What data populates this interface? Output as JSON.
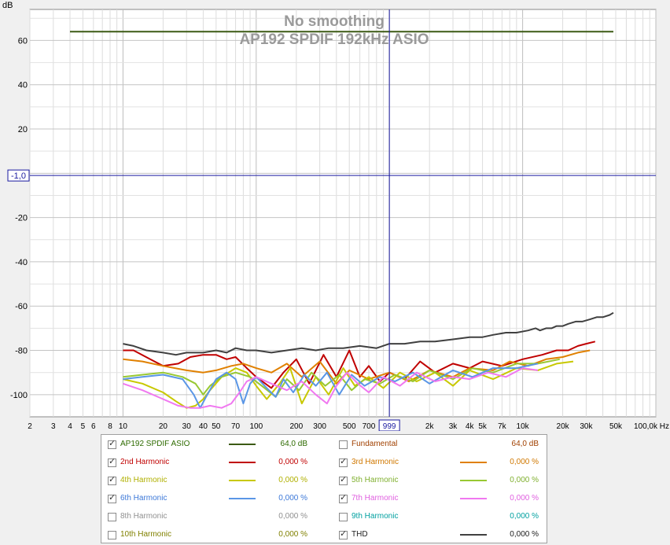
{
  "chart_data": {
    "type": "line",
    "title": "No smoothing",
    "subtitle": "AP192 SPDIF 192kHz ASIO",
    "ylabel": "dB",
    "xlabel": "Hz",
    "x_scale": "log",
    "xlim": [
      2,
      100000
    ],
    "ylim": [
      -110,
      74
    ],
    "grid": true,
    "y_ticks": [
      "60",
      "40",
      "20",
      "-20",
      "-40",
      "-60",
      "-80",
      "-100"
    ],
    "y_tick_values": [
      60,
      40,
      20,
      -20,
      -40,
      -60,
      -80,
      -100
    ],
    "x_ticks": [
      {
        "v": 2,
        "label": "2"
      },
      {
        "v": 3,
        "label": "3"
      },
      {
        "v": 4,
        "label": "4"
      },
      {
        "v": 5,
        "label": "5"
      },
      {
        "v": 6,
        "label": "6"
      },
      {
        "v": 8,
        "label": "8"
      },
      {
        "v": 10,
        "label": "10"
      },
      {
        "v": 20,
        "label": "20"
      },
      {
        "v": 30,
        "label": "30"
      },
      {
        "v": 40,
        "label": "40"
      },
      {
        "v": 50,
        "label": "50"
      },
      {
        "v": 70,
        "label": "70"
      },
      {
        "v": 100,
        "label": "100"
      },
      {
        "v": 200,
        "label": "200"
      },
      {
        "v": 300,
        "label": "300"
      },
      {
        "v": 500,
        "label": "500"
      },
      {
        "v": 700,
        "label": "700"
      },
      {
        "v": 2000,
        "label": "2k"
      },
      {
        "v": 3000,
        "label": "3k"
      },
      {
        "v": 4000,
        "label": "4k"
      },
      {
        "v": 5000,
        "label": "5k"
      },
      {
        "v": 7000,
        "label": "7k"
      },
      {
        "v": 10000,
        "label": "10k"
      },
      {
        "v": 20000,
        "label": "20k"
      },
      {
        "v": 30000,
        "label": "30k"
      },
      {
        "v": 50000,
        "label": "50k"
      },
      {
        "v": 100000,
        "label": "100,0k Hz"
      }
    ],
    "cursor": {
      "x": 999,
      "x_label": "999",
      "y": -1.0,
      "y_label": "-1,0"
    },
    "series": [
      {
        "name": "AP192 SPDIF ASIO",
        "color": "#3c5a14",
        "x": [
          4,
          48000
        ],
        "y": [
          64,
          64
        ]
      },
      {
        "name": "2nd Harmonic",
        "color": "#c00000",
        "x": [
          10,
          12,
          16,
          20,
          26,
          32,
          40,
          50,
          60,
          70,
          85,
          100,
          130,
          160,
          200,
          250,
          320,
          400,
          500,
          600,
          700,
          850,
          1000,
          1300,
          1700,
          2200,
          3000,
          4000,
          5000,
          7000,
          10000,
          14000,
          18000,
          22000,
          26000,
          30000,
          35000
        ],
        "y": [
          -80,
          -80,
          -84,
          -87,
          -86,
          -83,
          -82,
          -82,
          -84,
          -83,
          -88,
          -92,
          -97,
          -90,
          -84,
          -95,
          -82,
          -92,
          -80,
          -92,
          -87,
          -94,
          -90,
          -93,
          -85,
          -90,
          -86,
          -88,
          -85,
          -87,
          -84,
          -82,
          -80,
          -80,
          -78,
          -77,
          -76
        ]
      },
      {
        "name": "3rd Harmonic",
        "color": "#e08000",
        "x": [
          10,
          14,
          20,
          30,
          40,
          50,
          65,
          80,
          100,
          130,
          170,
          220,
          300,
          400,
          500,
          700,
          1000,
          1400,
          2000,
          3000,
          4000,
          6000,
          8000,
          11000,
          15000,
          20000,
          26000,
          32000
        ],
        "y": [
          -84,
          -85,
          -87,
          -89,
          -90,
          -89,
          -87,
          -86,
          -88,
          -90,
          -86,
          -92,
          -85,
          -95,
          -89,
          -93,
          -90,
          -94,
          -89,
          -92,
          -88,
          -89,
          -85,
          -87,
          -84,
          -83,
          -81,
          -80
        ]
      },
      {
        "name": "4th Harmonic",
        "color": "#c8c800",
        "x": [
          10,
          14,
          20,
          25,
          30,
          35,
          40,
          45,
          55,
          70,
          85,
          100,
          120,
          150,
          180,
          220,
          280,
          350,
          450,
          550,
          700,
          900,
          1200,
          1600,
          2200,
          3000,
          4000,
          6000,
          9000,
          13000,
          18000,
          24000
        ],
        "y": [
          -93,
          -95,
          -99,
          -103,
          -106,
          -105,
          -102,
          -98,
          -92,
          -88,
          -90,
          -96,
          -102,
          -95,
          -88,
          -104,
          -92,
          -100,
          -88,
          -96,
          -92,
          -97,
          -90,
          -94,
          -90,
          -96,
          -89,
          -93,
          -88,
          -89,
          -86,
          -85
        ]
      },
      {
        "name": "5th Harmonic",
        "color": "#98c832",
        "x": [
          10,
          14,
          20,
          28,
          35,
          40,
          45,
          55,
          70,
          90,
          110,
          140,
          170,
          210,
          260,
          330,
          420,
          520,
          650,
          850,
          1100,
          1500,
          2000,
          3000,
          4200,
          6000,
          9000,
          13000,
          19000
        ],
        "y": [
          -92,
          -91,
          -90,
          -92,
          -95,
          -100,
          -96,
          -92,
          -90,
          -92,
          -96,
          -101,
          -93,
          -98,
          -90,
          -96,
          -91,
          -98,
          -93,
          -95,
          -91,
          -94,
          -89,
          -93,
          -88,
          -90,
          -86,
          -86,
          -84
        ]
      },
      {
        "name": "6th Harmonic",
        "color": "#5a96e6",
        "x": [
          10,
          14,
          20,
          28,
          34,
          38,
          42,
          50,
          60,
          70,
          80,
          90,
          100,
          120,
          140,
          160,
          190,
          230,
          280,
          340,
          420,
          520,
          650,
          850,
          1100,
          1500,
          2000,
          3000,
          4200,
          6000,
          9000,
          13000
        ],
        "y": [
          -93,
          -92,
          -91,
          -93,
          -100,
          -106,
          -101,
          -93,
          -90,
          -93,
          -104,
          -95,
          -92,
          -97,
          -101,
          -93,
          -99,
          -91,
          -96,
          -90,
          -100,
          -91,
          -96,
          -92,
          -94,
          -90,
          -95,
          -89,
          -92,
          -88,
          -88,
          -86
        ]
      },
      {
        "name": "7th Harmonic",
        "color": "#f078f0",
        "x": [
          10,
          14,
          20,
          26,
          32,
          38,
          45,
          55,
          65,
          75,
          85,
          100,
          130,
          170,
          220,
          280,
          340,
          400,
          480,
          580,
          700,
          900,
          1200,
          1600,
          2200,
          3000,
          4000,
          5500,
          7500,
          10000,
          13000
        ],
        "y": [
          -95,
          -98,
          -102,
          -105,
          -106,
          -106,
          -105,
          -106,
          -104,
          -99,
          -94,
          -92,
          -95,
          -98,
          -94,
          -100,
          -104,
          -96,
          -90,
          -95,
          -99,
          -92,
          -96,
          -90,
          -94,
          -92,
          -93,
          -90,
          -92,
          -88,
          -89
        ]
      },
      {
        "name": "8th Harmonic",
        "color": "#a0a0a0",
        "x": [],
        "y": []
      },
      {
        "name": "9th Harmonic",
        "color": "#00b4b4",
        "x": [],
        "y": []
      },
      {
        "name": "10th Harmonic",
        "color": "#8c8c00",
        "x": [],
        "y": []
      },
      {
        "name": "THD",
        "color": "#404040",
        "x": [
          10,
          12,
          15,
          20,
          25,
          30,
          40,
          50,
          60,
          70,
          85,
          100,
          130,
          170,
          220,
          280,
          350,
          450,
          600,
          800,
          1000,
          1300,
          1700,
          2200,
          3000,
          4000,
          5000,
          6000,
          7500,
          9000,
          11000,
          12500,
          13500,
          15000,
          16500,
          18000,
          20000,
          22000,
          25000,
          28000,
          32000,
          36000,
          40000,
          45000,
          48000
        ],
        "y": [
          -77,
          -78,
          -80,
          -81,
          -82,
          -81,
          -81,
          -80,
          -81,
          -79,
          -80,
          -80,
          -81,
          -80,
          -79,
          -80,
          -79,
          -79,
          -78,
          -79,
          -77,
          -77,
          -76,
          -76,
          -75,
          -74,
          -74,
          -73,
          -72,
          -72,
          -71,
          -70,
          -71,
          -70,
          -70,
          -69,
          -69,
          -68,
          -67,
          -67,
          -66,
          -65,
          -65,
          -64,
          -63
        ]
      }
    ]
  },
  "legend": {
    "items": [
      {
        "label": "AP192 SPDIF ASIO",
        "value": "64,0 dB",
        "checked": true,
        "color": "#2e6b00",
        "swatch": "#3c5a14"
      },
      {
        "label": "Fundamental",
        "value": "64,0 dB",
        "checked": false,
        "color": "#a04000",
        "swatch": ""
      },
      {
        "label": "2nd Harmonic",
        "value": "0,000 %",
        "checked": true,
        "color": "#c00000",
        "swatch": "#c00000"
      },
      {
        "label": "3rd Harmonic",
        "value": "0,000 %",
        "checked": true,
        "color": "#d07800",
        "swatch": "#e08000"
      },
      {
        "label": "4th Harmonic",
        "value": "0,000 %",
        "checked": true,
        "color": "#b0b000",
        "swatch": "#c8c800"
      },
      {
        "label": "5th Harmonic",
        "value": "0,000 %",
        "checked": true,
        "color": "#80b030",
        "swatch": "#98c832"
      },
      {
        "label": "6th Harmonic",
        "value": "0,000 %",
        "checked": true,
        "color": "#3c78d8",
        "swatch": "#5a96e6"
      },
      {
        "label": "7th Harmonic",
        "value": "0,000 %",
        "checked": true,
        "color": "#e060e0",
        "swatch": "#f078f0"
      },
      {
        "label": "8th Harmonic",
        "value": "0,000 %",
        "checked": false,
        "color": "#909090",
        "swatch": ""
      },
      {
        "label": "9th Harmonic",
        "value": "0,000 %",
        "checked": false,
        "color": "#00a0a0",
        "swatch": ""
      },
      {
        "label": "10th Harmonic",
        "value": "0,000 %",
        "checked": false,
        "color": "#808000",
        "swatch": ""
      },
      {
        "label": "THD",
        "value": "0,000 %",
        "checked": true,
        "color": "#202020",
        "swatch": "#404040"
      }
    ]
  }
}
